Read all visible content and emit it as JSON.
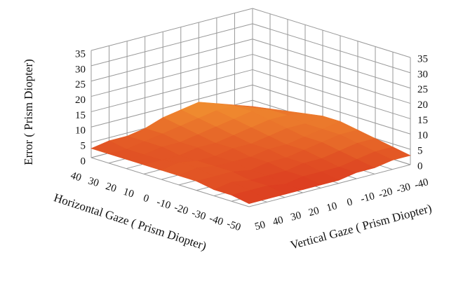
{
  "chart_data": {
    "type": "surface",
    "zlabel": "Error ( Prism Diopter)",
    "xlabel": "Horizontal Gaze ( Prism Diopter)",
    "ylabel": "Vertical Gaze ( Prism Diopter)",
    "x": [
      -50,
      -40,
      -30,
      -20,
      -10,
      0,
      10,
      20,
      30,
      40
    ],
    "y": [
      -40,
      -30,
      -20,
      -10,
      0,
      10,
      20,
      30,
      40,
      50
    ],
    "z": [
      [
        3,
        3,
        2,
        2,
        1,
        1,
        1,
        1,
        1,
        1
      ],
      [
        4,
        4,
        3,
        2,
        2,
        2,
        1,
        2,
        2,
        2
      ],
      [
        5,
        5,
        4,
        3,
        3,
        2,
        2,
        2,
        3,
        2
      ],
      [
        6,
        6,
        5,
        4,
        3,
        3,
        2,
        3,
        3,
        3
      ],
      [
        7,
        6,
        5,
        4,
        4,
        3,
        3,
        3,
        4,
        3
      ],
      [
        7,
        6,
        6,
        5,
        4,
        4,
        3,
        3,
        4,
        3
      ],
      [
        6,
        7,
        7,
        6,
        5,
        4,
        4,
        3,
        3,
        3
      ],
      [
        5,
        7,
        8,
        7,
        6,
        5,
        4,
        4,
        3,
        3
      ],
      [
        4,
        6,
        8,
        8,
        7,
        6,
        5,
        4,
        3,
        3
      ],
      [
        3,
        5,
        7,
        9,
        8,
        7,
        5,
        4,
        4,
        3
      ]
    ],
    "xlim": [
      -50,
      40
    ],
    "ylim": [
      -40,
      50
    ],
    "zlim": [
      0,
      35
    ],
    "xticks": [
      40,
      30,
      20,
      10,
      0,
      -10,
      -20,
      -30,
      -40,
      -50
    ],
    "yticks": [
      50,
      40,
      30,
      20,
      10,
      0,
      -10,
      -20,
      -30,
      -40
    ],
    "zticks": [
      0,
      5,
      10,
      15,
      20,
      25,
      30,
      35
    ],
    "colormap": [
      "#d9311e",
      "#f5a033"
    ],
    "grid": true
  }
}
